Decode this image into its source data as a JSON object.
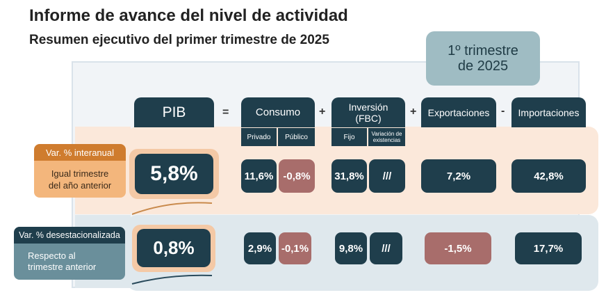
{
  "title": "Informe de avance del nivel de actividad",
  "subtitle": "Resumen ejecutivo del primer trimestre de 2025",
  "quarter_badge": {
    "line1": "1º trimestre",
    "line2": "de 2025"
  },
  "headers": {
    "pib": "PIB",
    "consumo": "Consumo",
    "inversion": "Inversión (FBC)",
    "exportaciones": "Exportaciones",
    "importaciones": "Importaciones"
  },
  "subheaders": {
    "privado": "Privado",
    "publico": "Público",
    "fijo": "Fijo",
    "variacion": "Variación de existencias"
  },
  "operators": {
    "eq": "=",
    "plus1": "+",
    "plus2": "+",
    "minus": "-"
  },
  "rows": {
    "interanual": {
      "tag": "Var. % interanual",
      "desc": "Igual trimestre del año anterior",
      "pib": "5,8%",
      "privado": "11,6%",
      "publico": "-0,8%",
      "fijo": "31,8%",
      "variacion": "///",
      "exportaciones": "7,2%",
      "importaciones": "42,8%"
    },
    "desestacionalizada": {
      "tag": "Var. % desestacionalizada",
      "desc": "Respecto al trimestre anterior",
      "pib": "0,8%",
      "privado": "2,9%",
      "publico": "-0,1%",
      "fijo": "9,8%",
      "variacion": "///",
      "exportaciones": "-1,5%",
      "importaciones": "17,7%"
    }
  },
  "colors": {
    "dark": "#1f3e4c",
    "negative": "#a86d6b",
    "orange": "#cf7c2e",
    "badge": "#9fbcc3"
  }
}
